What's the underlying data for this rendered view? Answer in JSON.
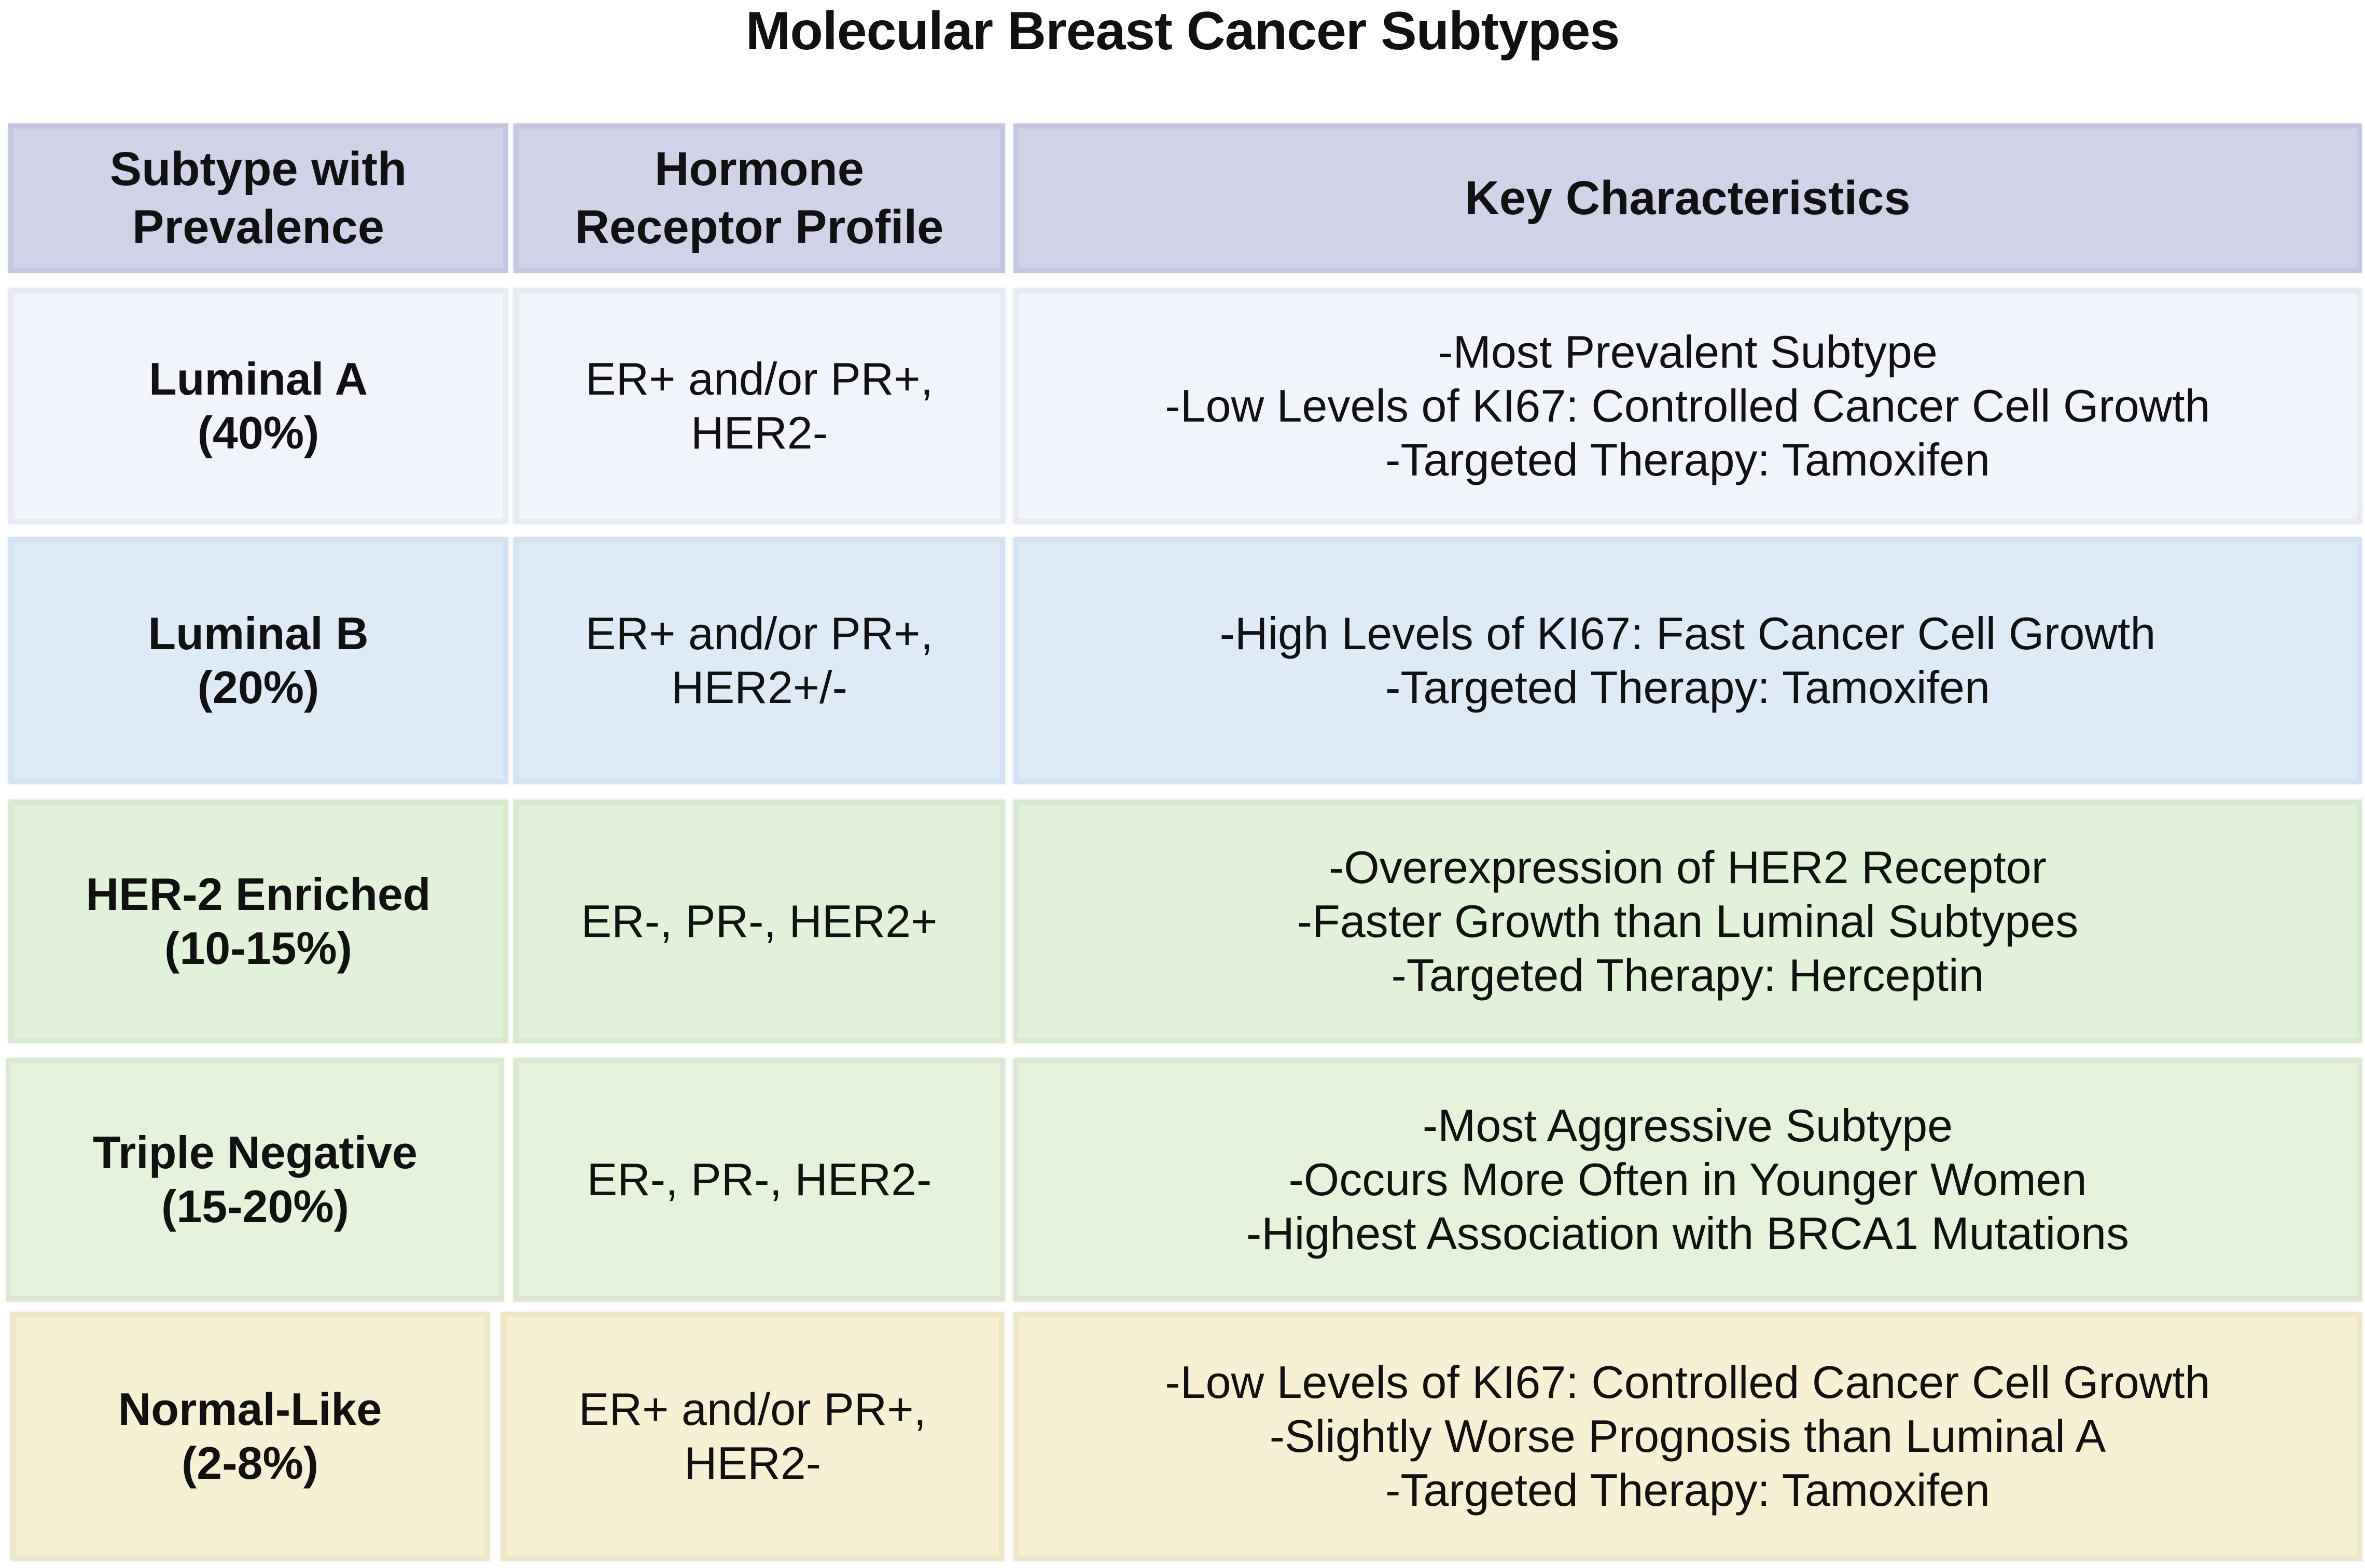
{
  "title": "Molecular Breast Cancer Subtypes",
  "headers": [
    "Subtype with\nPrevalence",
    "Hormone\nReceptor Profile",
    "Key Characteristics"
  ],
  "rows": [
    {
      "subtype": "Luminal A\n(40%)",
      "receptor": "ER+ and/or PR+,\nHER2-",
      "characteristics": "-Most Prevalent Subtype\n-Low Levels of KI67: Controlled Cancer Cell Growth\n-Targeted Therapy: Tamoxifen"
    },
    {
      "subtype": "Luminal B\n(20%)",
      "receptor": "ER+ and/or PR+,\nHER2+/-",
      "characteristics": "-High Levels of KI67: Fast Cancer Cell Growth\n-Targeted Therapy: Tamoxifen"
    },
    {
      "subtype": "HER-2 Enriched\n(10-15%)",
      "receptor": "ER-, PR-, HER2+",
      "characteristics": "-Overexpression of HER2 Receptor\n-Faster Growth than Luminal Subtypes\n-Targeted Therapy: Herceptin"
    },
    {
      "subtype": "Triple Negative\n(15-20%)",
      "receptor": "ER-, PR-, HER2-",
      "characteristics": "-Most Aggressive Subtype\n-Occurs More Often in Younger Women\n-Highest Association with BRCA1 Mutations"
    },
    {
      "subtype": "Normal-Like\n(2-8%)",
      "receptor": "ER+ and/or PR+,\nHER2-",
      "characteristics": "-Low Levels of KI67: Controlled Cancer Cell Growth\n-Slightly Worse Prognosis than Luminal A\n-Targeted Therapy: Tamoxifen"
    }
  ],
  "colors": {
    "header_bg": "#d0d2e8",
    "luminal_a_bg": "#f1f4fa",
    "luminal_b_bg": "#deebf7",
    "her2_enriched_bg": "#e1f1da",
    "triple_negative_bg": "#e7f2dc",
    "normal_like_bg": "#f6f1d4"
  }
}
